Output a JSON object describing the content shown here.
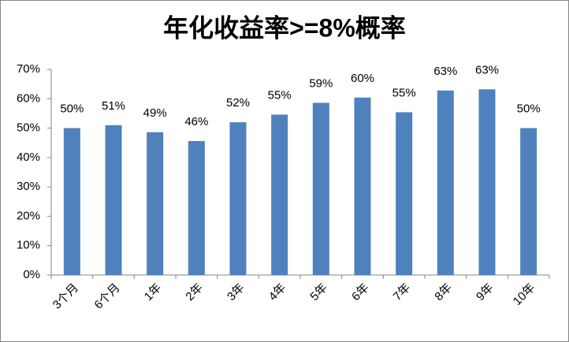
{
  "chart_data": {
    "type": "bar",
    "title": "年化收益率>=8%概率",
    "categories": [
      "3个月",
      "6个月",
      "1年",
      "2年",
      "3年",
      "4年",
      "5年",
      "6年",
      "7年",
      "8年",
      "9年",
      "10年"
    ],
    "values": [
      50,
      51,
      48.6,
      45.6,
      52,
      54.6,
      58.6,
      60.4,
      55.4,
      62.8,
      63.2,
      50
    ],
    "value_labels": [
      "50%",
      "51%",
      "49%",
      "46%",
      "52%",
      "55%",
      "59%",
      "60%",
      "55%",
      "63%",
      "63%",
      "50%"
    ],
    "color": "#4f81bd",
    "ylim": [
      0,
      70
    ],
    "yticks": [
      {
        "value": 0,
        "label": "0%"
      },
      {
        "value": 10,
        "label": "10%"
      },
      {
        "value": 20,
        "label": "20%"
      },
      {
        "value": 30,
        "label": "30%"
      },
      {
        "value": 40,
        "label": "40%"
      },
      {
        "value": 50,
        "label": "50%"
      },
      {
        "value": 60,
        "label": "60%"
      },
      {
        "value": 70,
        "label": "70%"
      }
    ],
    "grid": false
  }
}
